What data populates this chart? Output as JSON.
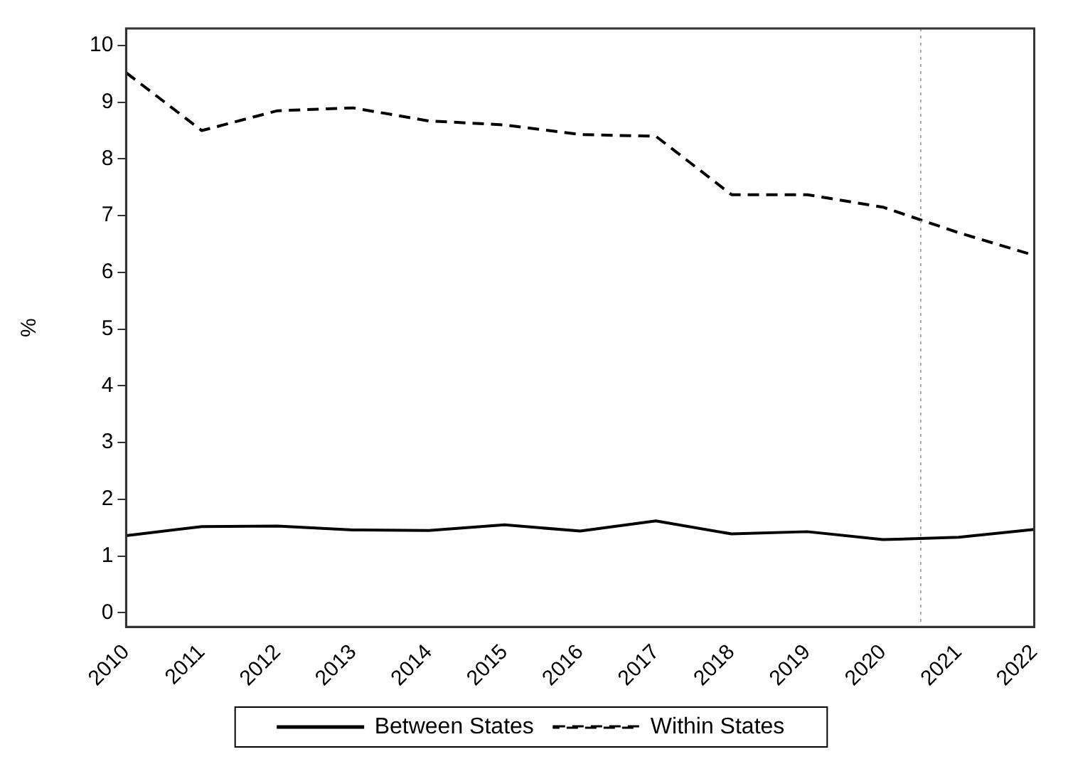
{
  "chart_data": {
    "type": "line",
    "ylabel": "%",
    "x": [
      2010,
      2011,
      2012,
      2013,
      2014,
      2015,
      2016,
      2017,
      2018,
      2019,
      2020,
      2021,
      2022
    ],
    "series": [
      {
        "name": "Between States",
        "color": "#000000",
        "line_style": "solid",
        "values": [
          1.36,
          1.52,
          1.53,
          1.46,
          1.45,
          1.55,
          1.44,
          1.62,
          1.39,
          1.43,
          1.29,
          1.33,
          1.47
        ]
      },
      {
        "name": "Within States",
        "color": "#000000",
        "line_style": "dashed",
        "values": [
          9.52,
          8.5,
          8.85,
          8.9,
          8.67,
          8.6,
          8.43,
          8.4,
          7.37,
          7.37,
          7.15,
          6.7,
          6.3
        ]
      }
    ],
    "xlim": [
      2010,
      2022
    ],
    "xticks": [
      2010,
      2011,
      2012,
      2013,
      2014,
      2015,
      2016,
      2017,
      2018,
      2019,
      2020,
      2021,
      2022
    ],
    "ylim": [
      -0.25,
      10.3
    ],
    "yticks": [
      0,
      1,
      2,
      3,
      4,
      5,
      6,
      7,
      8,
      9,
      10
    ],
    "ref_lines": [
      {
        "axis": "x",
        "value": 2020.5,
        "color": "#aaaaaa",
        "line_style": "dotted"
      }
    ],
    "grid": false,
    "legend": "bottom",
    "marker": "none"
  }
}
